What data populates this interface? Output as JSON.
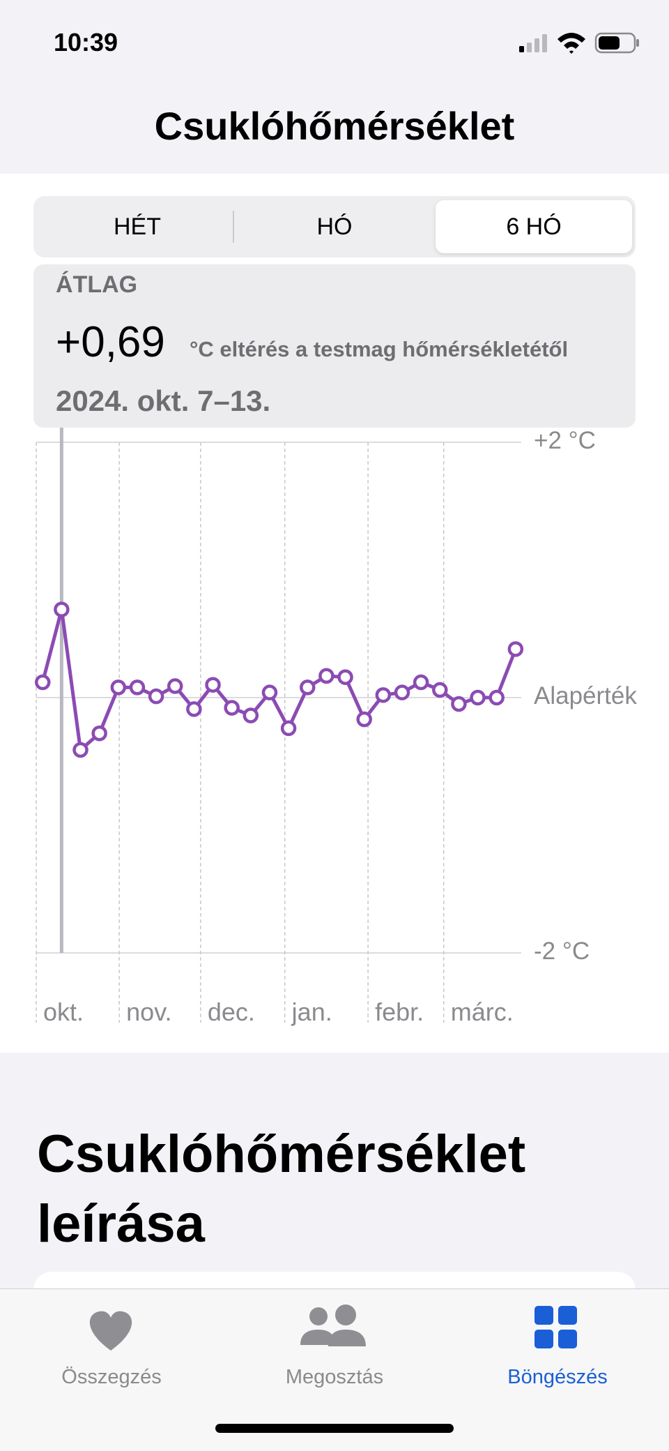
{
  "status_bar": {
    "time": "10:39"
  },
  "nav": {
    "title": "Csuklóhőmérséklet"
  },
  "segments": {
    "items": [
      "HÉT",
      "HÓ",
      "6 HÓ"
    ],
    "selected": 2
  },
  "summary": {
    "label": "ÁTLAG",
    "value": "+0,69",
    "unit": "°C eltérés a testmag hőmérsékletétől",
    "date": "2024. okt. 7–13."
  },
  "chart_data": {
    "type": "line",
    "categories": [
      null,
      null,
      null,
      null,
      null,
      null,
      null,
      null,
      null,
      null,
      null,
      null,
      null,
      null,
      null,
      null,
      null,
      null,
      null,
      null,
      null,
      null,
      null,
      null,
      null,
      null
    ],
    "values": [
      0.12,
      0.69,
      -0.41,
      -0.28,
      0.08,
      0.08,
      0.01,
      0.09,
      -0.09,
      0.1,
      -0.08,
      -0.14,
      0.04,
      -0.24,
      0.08,
      0.17,
      0.16,
      -0.17,
      0.02,
      0.04,
      0.12,
      0.06,
      -0.05,
      0,
      0,
      0.38
    ],
    "color": "#8b4bb3",
    "ylim": [
      -2,
      2
    ],
    "yticks": [
      {
        "value": 2,
        "label": "+2 °C"
      },
      {
        "value": 0,
        "label": "Alapérték"
      },
      {
        "value": -2,
        "label": "-2 °C"
      }
    ],
    "xlim": [
      -0.34,
      25.3
    ],
    "xticks": [
      {
        "value": -0.34,
        "label": "okt."
      },
      {
        "value": 4.05,
        "label": "nov."
      },
      {
        "value": 8.35,
        "label": "dec."
      },
      {
        "value": 12.8,
        "label": "jan."
      },
      {
        "value": 17.2,
        "label": "febr."
      },
      {
        "value": 21.2,
        "label": "márc."
      }
    ],
    "selected_index": 1,
    "grid": true
  },
  "section": {
    "title": "Csuklóhőmérséklet leírása"
  },
  "tabs": {
    "items": [
      "Összegzés",
      "Megosztás",
      "Böngészés"
    ],
    "selected": 2
  }
}
